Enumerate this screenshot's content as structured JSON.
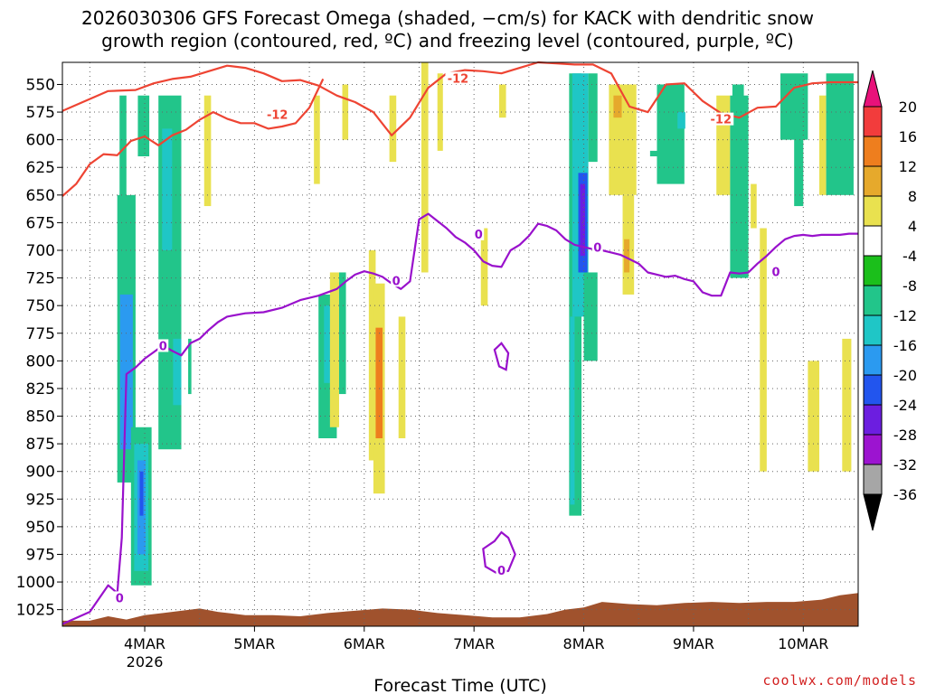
{
  "title_line1": "2026030306 GFS Forecast Omega (shaded, −cm/s) for KACK with dendritic snow",
  "title_line2": "growth region (contoured, red, ºC) and freezing level (contoured, purple, ºC)",
  "credit": "coolwx.com/models",
  "colors": {
    "dgz": "#ee4433",
    "freezing": "#9911cc",
    "terrain": "#a0522d",
    "grid": "#666666"
  },
  "chart_data": {
    "type": "heatmap",
    "title": "2026030306 GFS Forecast Omega (shaded, −cm/s) for KACK",
    "xlabel": "Forecast Time (UTC)",
    "ylabel": "",
    "x_unit": "hours since 2026-03-03 06Z",
    "xlim": [
      0,
      174
    ],
    "ylim": [
      1040,
      530
    ],
    "x_ticks": [
      {
        "label": "4MAR",
        "sub": "2026",
        "value": 18
      },
      {
        "label": "5MAR",
        "sub": "",
        "value": 42
      },
      {
        "label": "6MAR",
        "sub": "",
        "value": 66
      },
      {
        "label": "7MAR",
        "sub": "",
        "value": 90
      },
      {
        "label": "8MAR",
        "sub": "",
        "value": 114
      },
      {
        "label": "9MAR",
        "sub": "",
        "value": 138
      },
      {
        "label": "10MAR",
        "sub": "",
        "value": 162
      }
    ],
    "y_ticks": [
      "550",
      "575",
      "600",
      "625",
      "650",
      "675",
      "700",
      "725",
      "750",
      "775",
      "800",
      "825",
      "850",
      "875",
      "900",
      "925",
      "950",
      "975",
      "1000",
      "1025"
    ],
    "colorbar": {
      "labels": [
        "20",
        "16",
        "12",
        "8",
        "4",
        "-4",
        "-8",
        "-12",
        "-16",
        "-20",
        "-24",
        "-28",
        "-32",
        "-36"
      ],
      "colors": [
        "#e8127a",
        "#f23c3c",
        "#ee7e1e",
        "#e6a92c",
        "#e9e14f",
        "#ffffff",
        "#1bbf1b",
        "#22c58a",
        "#1fc6c6",
        "#2b9af0",
        "#2255ee",
        "#6c1ee0",
        "#9c14d0",
        "#a6a6a6",
        "#000000"
      ]
    },
    "shading": [
      {
        "x0": 12.5,
        "x1": 14,
        "p0": 670,
        "p1": 560,
        "level": "-8"
      },
      {
        "x0": 12,
        "x1": 16,
        "p0": 910,
        "p1": 650,
        "level": "-8"
      },
      {
        "x0": 12.6,
        "x1": 15.4,
        "p0": 880,
        "p1": 740,
        "level": "-16"
      },
      {
        "x0": 15,
        "x1": 19.5,
        "p0": 1003,
        "p1": 860,
        "level": "-8"
      },
      {
        "x0": 15.7,
        "x1": 18.8,
        "p0": 990,
        "p1": 875,
        "level": "-12"
      },
      {
        "x0": 16.4,
        "x1": 18.2,
        "p0": 975,
        "p1": 890,
        "level": "-16"
      },
      {
        "x0": 16.9,
        "x1": 17.7,
        "p0": 940,
        "p1": 900,
        "level": "-20"
      },
      {
        "x0": 16.5,
        "x1": 19,
        "p0": 615,
        "p1": 560,
        "level": "-8"
      },
      {
        "x0": 21,
        "x1": 26,
        "p0": 880,
        "p1": 560,
        "level": "-8"
      },
      {
        "x0": 21.8,
        "x1": 24,
        "p0": 700,
        "p1": 590,
        "level": "-12"
      },
      {
        "x0": 24.2,
        "x1": 26,
        "p0": 840,
        "p1": 780,
        "level": "-12"
      },
      {
        "x0": 27.5,
        "x1": 28.2,
        "p0": 830,
        "p1": 780,
        "level": "-8"
      },
      {
        "x0": 31,
        "x1": 32.5,
        "p0": 660,
        "p1": 560,
        "level": "4"
      },
      {
        "x0": 56,
        "x1": 60,
        "p0": 870,
        "p1": 740,
        "level": "-8"
      },
      {
        "x0": 57.2,
        "x1": 59,
        "p0": 820,
        "p1": 750,
        "level": "-12"
      },
      {
        "x0": 58.5,
        "x1": 60.5,
        "p0": 860,
        "p1": 720,
        "level": "4"
      },
      {
        "x0": 60.5,
        "x1": 62,
        "p0": 830,
        "p1": 720,
        "level": "-8"
      },
      {
        "x0": 61.2,
        "x1": 62.5,
        "p0": 600,
        "p1": 550,
        "level": "4"
      },
      {
        "x0": 55,
        "x1": 56.3,
        "p0": 640,
        "p1": 560,
        "level": "4"
      },
      {
        "x0": 67,
        "x1": 68.5,
        "p0": 890,
        "p1": 700,
        "level": "4"
      },
      {
        "x0": 68,
        "x1": 70.5,
        "p0": 920,
        "p1": 730,
        "level": "4"
      },
      {
        "x0": 68.5,
        "x1": 70,
        "p0": 870,
        "p1": 770,
        "level": "12"
      },
      {
        "x0": 71.5,
        "x1": 73,
        "p0": 620,
        "p1": 560,
        "level": "4"
      },
      {
        "x0": 73.5,
        "x1": 75,
        "p0": 870,
        "p1": 760,
        "level": "4"
      },
      {
        "x0": 78.5,
        "x1": 80,
        "p0": 720,
        "p1": 530,
        "level": "4"
      },
      {
        "x0": 82,
        "x1": 83.2,
        "p0": 610,
        "p1": 540,
        "level": "4"
      },
      {
        "x0": 91.5,
        "x1": 93,
        "p0": 750,
        "p1": 680,
        "level": "4"
      },
      {
        "x0": 95.5,
        "x1": 97,
        "p0": 580,
        "p1": 550,
        "level": "4"
      },
      {
        "x0": 110.8,
        "x1": 113.5,
        "p0": 940,
        "p1": 540,
        "level": "-8"
      },
      {
        "x0": 111.5,
        "x1": 115,
        "p0": 760,
        "p1": 540,
        "level": "-12"
      },
      {
        "x0": 112.8,
        "x1": 114.8,
        "p0": 720,
        "p1": 630,
        "level": "-20"
      },
      {
        "x0": 113.2,
        "x1": 114.3,
        "p0": 705,
        "p1": 640,
        "level": "-24"
      },
      {
        "x0": 111,
        "x1": 112,
        "p0": 930,
        "p1": 760,
        "level": "-12"
      },
      {
        "x0": 114,
        "x1": 117,
        "p0": 800,
        "p1": 720,
        "level": "-8"
      },
      {
        "x0": 115,
        "x1": 117,
        "p0": 620,
        "p1": 540,
        "level": "-8"
      },
      {
        "x0": 119.5,
        "x1": 125.5,
        "p0": 650,
        "p1": 550,
        "level": "4"
      },
      {
        "x0": 120.5,
        "x1": 122.3,
        "p0": 580,
        "p1": 560,
        "level": "8"
      },
      {
        "x0": 122.5,
        "x1": 125,
        "p0": 740,
        "p1": 650,
        "level": "4"
      },
      {
        "x0": 122.8,
        "x1": 124,
        "p0": 720,
        "p1": 690,
        "level": "8"
      },
      {
        "x0": 130,
        "x1": 136,
        "p0": 640,
        "p1": 550,
        "level": "-8"
      },
      {
        "x0": 128.5,
        "x1": 130.5,
        "p0": 615,
        "p1": 610,
        "level": "-8"
      },
      {
        "x0": 134.5,
        "x1": 136.2,
        "p0": 590,
        "p1": 575,
        "level": "-12"
      },
      {
        "x0": 143,
        "x1": 146,
        "p0": 650,
        "p1": 560,
        "level": "4"
      },
      {
        "x0": 146.5,
        "x1": 149,
        "p0": 580,
        "p1": 550,
        "level": "-8"
      },
      {
        "x0": 146,
        "x1": 150,
        "p0": 725,
        "p1": 560,
        "level": "-8"
      },
      {
        "x0": 150.5,
        "x1": 151.8,
        "p0": 680,
        "p1": 640,
        "level": "4"
      },
      {
        "x0": 152.5,
        "x1": 154,
        "p0": 900,
        "p1": 680,
        "level": "4"
      },
      {
        "x0": 157,
        "x1": 163,
        "p0": 600,
        "p1": 540,
        "level": "-8"
      },
      {
        "x0": 160,
        "x1": 162,
        "p0": 660,
        "p1": 590,
        "level": "-8"
      },
      {
        "x0": 163,
        "x1": 165.5,
        "p0": 900,
        "p1": 800,
        "level": "4"
      },
      {
        "x0": 165.5,
        "x1": 167,
        "p0": 650,
        "p1": 560,
        "level": "4"
      },
      {
        "x0": 167,
        "x1": 173,
        "p0": 650,
        "p1": 540,
        "level": "-8"
      },
      {
        "x0": 170.5,
        "x1": 172.5,
        "p0": 900,
        "p1": 780,
        "level": "4"
      }
    ],
    "dgz_isotherm_upper": {
      "label": "-12",
      "x": [
        0,
        5,
        10,
        16,
        20,
        24,
        28,
        32,
        36,
        40,
        44,
        48,
        52,
        56,
        60,
        64,
        68,
        72,
        76,
        80,
        84,
        88,
        92,
        96,
        100,
        104,
        108,
        112,
        116,
        120,
        124,
        128,
        132,
        136,
        140,
        144,
        148,
        152,
        156,
        160,
        164,
        168,
        174
      ],
      "p": [
        574,
        565,
        556,
        555,
        549,
        545,
        543,
        538,
        533,
        535,
        540,
        547,
        546,
        551,
        560,
        566,
        575,
        596,
        580,
        553,
        540,
        537,
        538,
        540,
        535,
        530,
        531,
        532,
        532,
        540,
        570,
        575,
        550,
        549,
        565,
        576,
        580,
        571,
        570,
        553,
        549,
        548,
        548
      ]
    },
    "dgz_isotherm_lower": {
      "label": "-12",
      "x": [
        0,
        3,
        6,
        9,
        12,
        15,
        18,
        21,
        24,
        27,
        30,
        33,
        36,
        39,
        42,
        45,
        48,
        51,
        54,
        57
      ],
      "p": [
        651,
        640,
        622,
        613,
        614,
        601,
        597,
        605,
        596,
        591,
        582,
        575,
        581,
        585,
        585,
        590,
        588,
        585,
        571,
        545
      ]
    },
    "freezing_level": {
      "label": "0",
      "x": [
        0,
        6,
        10,
        12,
        13,
        14,
        16,
        18,
        20,
        22,
        24,
        26,
        28,
        30,
        32,
        34,
        36,
        40,
        44,
        48,
        52,
        56,
        60,
        62,
        64,
        66,
        68,
        70,
        72,
        74,
        76,
        78,
        80,
        84,
        86,
        88,
        90,
        92,
        94,
        96,
        98,
        100,
        102,
        104,
        106,
        108,
        110,
        112,
        114,
        116,
        118,
        120,
        122,
        124,
        126,
        128,
        130,
        132,
        134,
        136,
        138,
        140,
        142,
        144,
        146,
        148,
        150,
        152,
        154,
        156,
        158,
        160,
        162,
        164,
        166,
        168,
        170,
        172,
        174
      ],
      "p": [
        1038,
        1027,
        1003,
        1010,
        960,
        812,
        806,
        798,
        792,
        786,
        791,
        795,
        784,
        780,
        772,
        765,
        760,
        757,
        756,
        752,
        745,
        741,
        735,
        728,
        722,
        719,
        721,
        724,
        730,
        735,
        728,
        672,
        667,
        680,
        688,
        693,
        700,
        710,
        714,
        715,
        700,
        695,
        687,
        676,
        678,
        682,
        690,
        695,
        697,
        699,
        700,
        702,
        704,
        708,
        712,
        720,
        722,
        724,
        723,
        726,
        728,
        738,
        741,
        741,
        720,
        721,
        720,
        712,
        705,
        697,
        690,
        687,
        686,
        687,
        686,
        686,
        686,
        685,
        685
      ]
    },
    "freezing_closed_contours": [
      {
        "x": [
          94.5,
          96,
          97.5,
          97,
          95.5,
          94.5
        ],
        "p": [
          790,
          784,
          793,
          808,
          805,
          790
        ]
      },
      {
        "x": [
          92,
          94.5,
          96,
          97.5,
          99,
          97.5,
          95,
          92.5,
          92
        ],
        "p": [
          970,
          963,
          955,
          960,
          975,
          990,
          992,
          986,
          970
        ]
      }
    ],
    "contour_labels": [
      {
        "text": "-12",
        "x": 47,
        "p": 578,
        "set": "dgz"
      },
      {
        "text": "-12",
        "x": 86.5,
        "p": 545,
        "set": "dgz"
      },
      {
        "text": "-12",
        "x": 144,
        "p": 582,
        "set": "dgz"
      },
      {
        "text": "0",
        "x": 22,
        "p": 787,
        "set": "freezing"
      },
      {
        "text": "0",
        "x": 12.5,
        "p": 1015,
        "set": "freezing"
      },
      {
        "text": "0",
        "x": 73,
        "p": 728,
        "set": "freezing"
      },
      {
        "text": "0",
        "x": 91,
        "p": 686,
        "set": "freezing"
      },
      {
        "text": "0",
        "x": 96,
        "p": 990,
        "set": "freezing"
      },
      {
        "text": "0",
        "x": 117,
        "p": 698,
        "set": "freezing"
      },
      {
        "text": "0",
        "x": 156,
        "p": 720,
        "set": "freezing"
      }
    ],
    "terrain": {
      "x": [
        0,
        6,
        10,
        14,
        18,
        22,
        26,
        30,
        34,
        40,
        46,
        52,
        58,
        64,
        70,
        76,
        82,
        88,
        94,
        100,
        106,
        110,
        114,
        118,
        124,
        130,
        136,
        142,
        148,
        154,
        160,
        166,
        170,
        174
      ],
      "p": [
        1035,
        1035,
        1031,
        1034,
        1030,
        1028,
        1026,
        1024,
        1027,
        1030,
        1030,
        1031,
        1028,
        1026,
        1024,
        1025,
        1028,
        1030,
        1032,
        1032,
        1029,
        1025,
        1023,
        1018,
        1020,
        1021,
        1019,
        1018,
        1019,
        1018,
        1018,
        1016,
        1012,
        1010
      ]
    }
  }
}
